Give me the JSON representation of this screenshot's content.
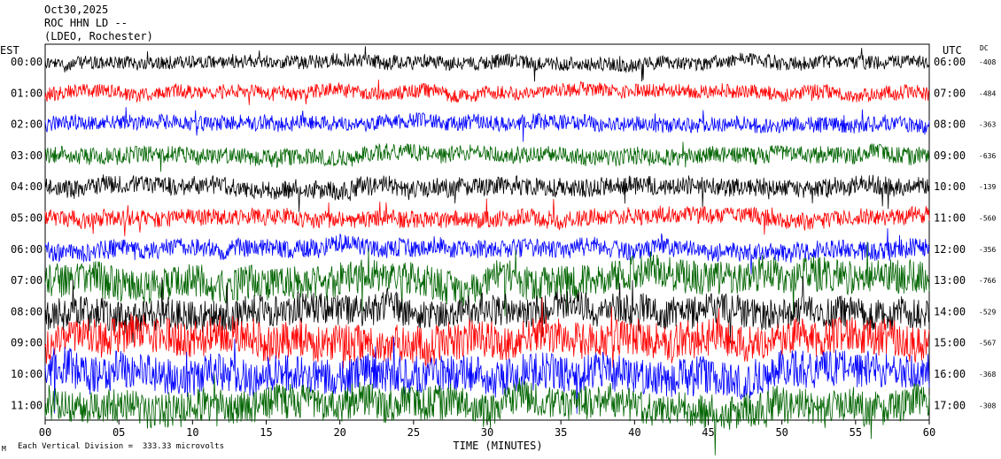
{
  "header": {
    "date": "Oct30,2025",
    "station": "ROC HHN LD --",
    "network": "(LDEO, Rochester)"
  },
  "footer": {
    "mark": "M",
    "scale_text": "Each Vertical Division =  333.33 microvolts"
  },
  "chart_data": {
    "type": "line",
    "title": "",
    "xlabel": "TIME (MINUTES)",
    "xlim": [
      0,
      60
    ],
    "x_ticks": [
      "00",
      "05",
      "10",
      "15",
      "20",
      "25",
      "30",
      "35",
      "40",
      "45",
      "50",
      "55",
      "60"
    ],
    "left_axis_label": "EST",
    "right_axis_label": "UTC",
    "dc_label": "DC",
    "colors": [
      "#000000",
      "#ff0000",
      "#0000ff",
      "#006400"
    ],
    "rows": [
      {
        "est": "00:00",
        "utc": "06:00",
        "dc": "-408",
        "color": "#000000",
        "amplitude": 0.45
      },
      {
        "est": "01:00",
        "utc": "07:00",
        "dc": "-484",
        "color": "#ff0000",
        "amplitude": 0.45
      },
      {
        "est": "02:00",
        "utc": "08:00",
        "dc": "-363",
        "color": "#0000ff",
        "amplitude": 0.5
      },
      {
        "est": "03:00",
        "utc": "09:00",
        "dc": "-636",
        "color": "#006400",
        "amplitude": 0.55
      },
      {
        "est": "04:00",
        "utc": "10:00",
        "dc": "-139",
        "color": "#000000",
        "amplitude": 0.6
      },
      {
        "est": "05:00",
        "utc": "11:00",
        "dc": "-560",
        "color": "#ff0000",
        "amplitude": 0.55
      },
      {
        "est": "06:00",
        "utc": "12:00",
        "dc": "-356",
        "color": "#0000ff",
        "amplitude": 0.6
      },
      {
        "est": "07:00",
        "utc": "13:00",
        "dc": "-766",
        "color": "#006400",
        "amplitude": 1.1
      },
      {
        "est": "08:00",
        "utc": "14:00",
        "dc": "-529",
        "color": "#000000",
        "amplitude": 1.0
      },
      {
        "est": "09:00",
        "utc": "15:00",
        "dc": "-567",
        "color": "#ff0000",
        "amplitude": 1.2
      },
      {
        "est": "10:00",
        "utc": "16:00",
        "dc": "-368",
        "color": "#0000ff",
        "amplitude": 1.2
      },
      {
        "est": "11:00",
        "utc": "17:00",
        "dc": "-308",
        "color": "#006400",
        "amplitude": 1.1
      }
    ]
  }
}
